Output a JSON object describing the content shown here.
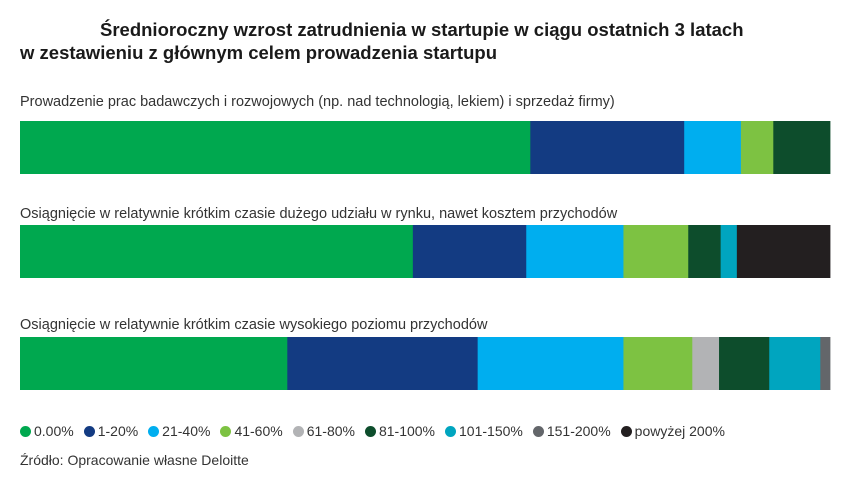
{
  "title_line1": "Średnioroczny wzrost zatrudnienia w startupie w ciągu ostatnich 3 latach",
  "title_line2": "w zestawieniu z głównym celem prowadzenia startupu",
  "source": "Źródło: Opracowanie własne Deloitte",
  "chart_data": {
    "type": "bar",
    "stacked": true,
    "orientation": "horizontal",
    "xlim": [
      0,
      100
    ],
    "grid": false,
    "legend_position": "bottom",
    "categories": [
      "Prowadzenie prac badawczych i rozwojowych (np. nad technologią, lekiem) i sprzedaż firmy)",
      "Osiągnięcie w relatywnie krótkim czasie dużego udziału w rynku, nawet kosztem przychodów",
      "Osiągnięcie w relatywnie krótkim czasie wysokiego poziomu przychodów"
    ],
    "series": [
      {
        "name": "0.00%",
        "color": "#00a84f",
        "values": [
          63,
          48.5,
          33
        ]
      },
      {
        "name": "1-20%",
        "color": "#133b82",
        "values": [
          19,
          14,
          23.5
        ]
      },
      {
        "name": "21-40%",
        "color": "#00aeef",
        "values": [
          7,
          12,
          18
        ]
      },
      {
        "name": "41-60%",
        "color": "#7dc242",
        "values": [
          4,
          8,
          8.5
        ]
      },
      {
        "name": "61-80%",
        "color": "#b2b3b5",
        "values": [
          0,
          0,
          3.3
        ]
      },
      {
        "name": "81-100%",
        "color": "#0d4d2c",
        "values": [
          7,
          4,
          6.2
        ]
      },
      {
        "name": "101-150%",
        "color": "#00a5bf",
        "values": [
          0,
          2,
          6.3
        ]
      },
      {
        "name": "151-200%",
        "color": "#63666a",
        "values": [
          0,
          0,
          1.2
        ]
      },
      {
        "name": "powyżej 200%",
        "color": "#231f20",
        "values": [
          0,
          11.5,
          0
        ]
      }
    ]
  }
}
